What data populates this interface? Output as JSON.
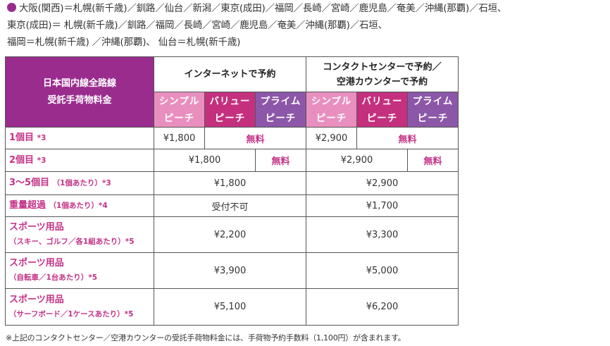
{
  "routes": {
    "line1": "大阪(関西)＝札幌(新千歳)／釧路／仙台／新潟／東京(成田)／福岡／長崎／宮崎／鹿児島／奄美／沖縄(那覇)／石垣、",
    "line2": "東京(成田)＝ 札幌(新千歳)／釧路／福岡／長崎／宮崎／鹿児島／奄美／沖縄(那覇)／石垣、",
    "line3": "福岡＝札幌(新千歳) ／沖縄(那覇)、 仙台＝札幌(新千歳)"
  },
  "table": {
    "corner_line1": "日本国内線全路線",
    "corner_line2": "受託手荷物料金",
    "group_internet": "インターネットで予約",
    "group_contact_line1": "コンタクトセンターで予約／",
    "group_contact_line2": "空港カウンターで予約",
    "fares": {
      "simple_1": "シンプル",
      "simple_2": "ピーチ",
      "value_1": "バリュー",
      "value_2": "ピーチ",
      "prime_1": "プライム",
      "prime_2": "ピーチ"
    },
    "rows": [
      {
        "label": "1個目",
        "note": "*3",
        "net_simple": "¥1,800",
        "net_rest": "無料",
        "cc_simple": "¥2,900",
        "cc_rest": "無料"
      },
      {
        "label": "2個目",
        "note": "*3",
        "net_sv": "¥1,800",
        "net_prime": "無料",
        "cc_sv": "¥2,900",
        "cc_prime": "無料"
      },
      {
        "label": "3～5個目",
        "sub": "（1個あたり）",
        "note": "*3",
        "net": "¥1,800",
        "cc": "¥2,900"
      },
      {
        "label": "重量超過",
        "sub": "（1個あたり）",
        "note": "*4",
        "net": "受付不可",
        "cc": "¥1,700"
      },
      {
        "label": "スポーツ用品",
        "sub": "（スキー、ゴルフ／各1組あたり）",
        "note": "*5",
        "net": "¥2,200",
        "cc": "¥3,300"
      },
      {
        "label": "スポーツ用品",
        "sub": "（自転車／1台あたり）",
        "note": "*5",
        "net": "¥3,900",
        "cc": "¥5,000"
      },
      {
        "label": "スポーツ用品",
        "sub": "（サーフボード／1ケースあたり）",
        "note": "*5",
        "net": "¥5,100",
        "cc": "¥6,200"
      }
    ]
  },
  "footnote": "※上記のコンタクトセンター／空港カウンターの受託手荷物料金には、手荷物予約手数料（1,100円）が含まれます。",
  "colors": {
    "header": "#9a2c8e",
    "simple": "#e98fc0",
    "value": "#c4307e",
    "prime": "#8c57a8",
    "accent_text": "#c43287"
  }
}
